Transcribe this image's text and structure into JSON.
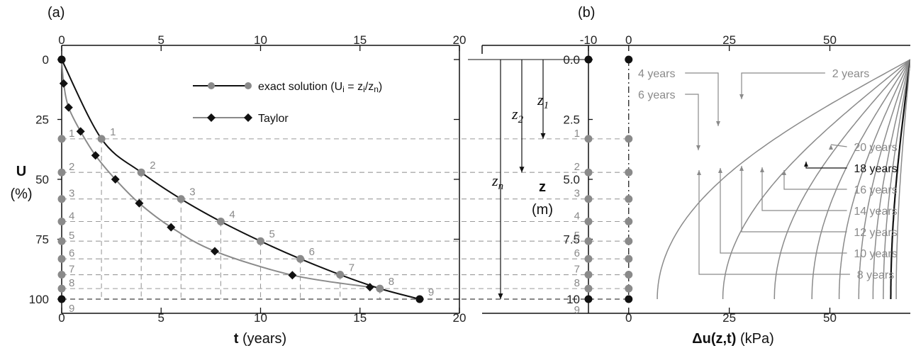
{
  "chart_data": [
    {
      "panel": "(a)",
      "type": "line",
      "xlabel_bold": "t",
      "xlabel_rest": " (years)",
      "ylabel_bold": "U",
      "ylabel_rest": "(%)",
      "xlim": [
        0,
        20
      ],
      "ylim": [
        0,
        100
      ],
      "y_inverted": true,
      "xticks": [
        0,
        5,
        10,
        15,
        20
      ],
      "yticks": [
        0,
        25,
        50,
        75,
        100
      ],
      "grid": false,
      "legend_position": "top-right",
      "series": [
        {
          "name": "exact solution (U",
          "name_sub1": "i",
          "name_mid": " = z",
          "name_sub2": "i",
          "name_mid2": "/z",
          "name_sub3": "n",
          "name_end": ")",
          "color": "#111111",
          "marker": "circle",
          "marker_color": "#8a8a8a",
          "x": [
            0,
            2,
            4,
            6,
            8,
            10,
            12,
            14,
            16,
            18
          ],
          "y": [
            0,
            33.1,
            47.1,
            58.2,
            67.6,
            75.8,
            83.2,
            89.8,
            95.6,
            100
          ],
          "point_labels": [
            "",
            "1",
            "2",
            "3",
            "4",
            "5",
            "6",
            "7",
            "8",
            "9"
          ]
        },
        {
          "name": "Taylor",
          "color": "#8a8a8a",
          "marker": "diamond",
          "marker_color": "#111111",
          "x": [
            0.1,
            0.35,
            0.95,
            1.7,
            2.7,
            3.9,
            5.5,
            7.7,
            11.6,
            15.5
          ],
          "y": [
            10,
            20,
            30,
            40,
            50,
            60,
            70,
            80,
            90,
            95
          ]
        }
      ],
      "left_axis_points": {
        "y": [
          0,
          33.1,
          47.1,
          58.2,
          67.6,
          75.8,
          83.2,
          89.8,
          95.6,
          100
        ],
        "labels": [
          "",
          "1",
          "2",
          "3",
          "4",
          "5",
          "6",
          "7",
          "8",
          "9"
        ]
      }
    },
    {
      "panel": "(b)",
      "type": "line",
      "xlabel_bold": "Δu(z,t)",
      "xlabel_rest": " (kPa)",
      "ylabel_bold": "z",
      "ylabel_rest": "(m)",
      "xlim": [
        -10,
        70
      ],
      "ylim": [
        0,
        10
      ],
      "y_inverted": true,
      "xticks_top": [
        -10,
        0,
        25,
        50
      ],
      "xticks_bottom": [
        0,
        25,
        50
      ],
      "yticks": [
        "0.0",
        "2.5",
        "5.0",
        "7.5",
        "10"
      ],
      "grid": false,
      "point_depths": [
        0,
        3.31,
        4.71,
        5.82,
        6.76,
        7.58,
        8.32,
        8.98,
        9.56,
        10
      ],
      "point_labels": [
        "",
        "1",
        "2",
        "3",
        "4",
        "5",
        "6",
        "7",
        "8",
        "9"
      ],
      "isochrones": [
        {
          "label": "2 years",
          "years": 2
        },
        {
          "label": "4 years",
          "years": 4
        },
        {
          "label": "6 years",
          "years": 6
        },
        {
          "label": "8 years",
          "years": 8
        },
        {
          "label": "10 years",
          "years": 10
        },
        {
          "label": "12 years",
          "years": 12
        },
        {
          "label": "14 years",
          "years": 14
        },
        {
          "label": "16 years",
          "years": 16
        },
        {
          "label": "18 years",
          "years": 18,
          "highlight": true
        },
        {
          "label": "20 years",
          "years": 20
        }
      ],
      "depth_markers": [
        {
          "sym": "z",
          "sub": "1"
        },
        {
          "sym": "z",
          "sub": "2"
        },
        {
          "sym": "z",
          "sub": "n"
        }
      ]
    }
  ]
}
